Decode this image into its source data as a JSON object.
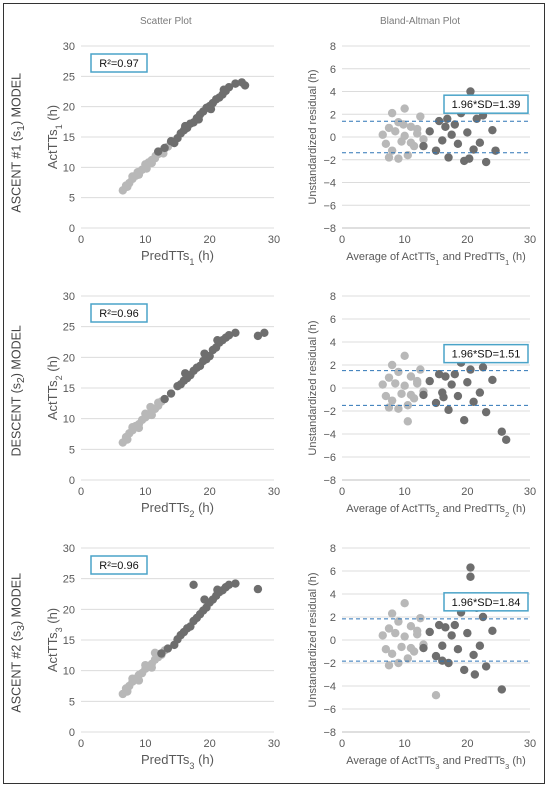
{
  "columns": {
    "scatter_title": "Scatter Plot",
    "ba_title": "Bland-Altman Plot"
  },
  "rows": [
    {
      "label_main": "ASCENT #1 (s",
      "label_sub": "1",
      "label_end": ") MODEL"
    },
    {
      "label_main": "DESCENT (s",
      "label_sub": "2",
      "label_end": ") MODEL"
    },
    {
      "label_main": "ASCENT #2 (s",
      "label_sub": "3",
      "label_end": ") MODEL"
    }
  ],
  "chart_data": [
    {
      "type": "scatter",
      "panel": "scatter-1",
      "xlabel": "PredTTs",
      "xlabel_sub": "1",
      "xlabel_unit": " (h)",
      "ylabel": "ActTTs",
      "ylabel_sub": "1",
      "ylabel_unit": " (h)",
      "xlim": [
        0,
        30
      ],
      "ylim": [
        0,
        30
      ],
      "xticks": [
        "0",
        "10",
        "20",
        "30"
      ],
      "yticks": [
        "0",
        "5",
        "10",
        "15",
        "20",
        "25",
        "30"
      ],
      "annotation": "R²=0.97",
      "grid": true,
      "series": [
        {
          "color": "#b8b8b8",
          "x": [
            6.5,
            7,
            7.5,
            8,
            8.5,
            9,
            9.5,
            10,
            10.5,
            11,
            11.5,
            12,
            12.5,
            13,
            13.5,
            8,
            9,
            10,
            11,
            12,
            7.2,
            8.8,
            10.2,
            11.6,
            12.8
          ],
          "y": [
            6.2,
            7,
            7.4,
            8.1,
            8.6,
            9.2,
            9.6,
            10.1,
            10.8,
            11.2,
            11.5,
            12.2,
            12.6,
            13.1,
            13.4,
            8.5,
            8.8,
            10.5,
            10.7,
            12.5,
            6.8,
            9.2,
            9.8,
            11.9,
            12.3
          ]
        },
        {
          "color": "#6e6e6e",
          "x": [
            12,
            13,
            14,
            15,
            15.5,
            16,
            16.5,
            17,
            17.5,
            18,
            18.5,
            19,
            19.5,
            20,
            20.5,
            21,
            21.5,
            22,
            22.5,
            23,
            24,
            25,
            25.5,
            14.5,
            16.2,
            18.3,
            20.2,
            22.2
          ],
          "y": [
            12.6,
            13.2,
            14.3,
            14.8,
            15.6,
            16.1,
            16.5,
            17.2,
            17.4,
            18.1,
            18.7,
            19.2,
            19.8,
            20.1,
            20.6,
            21.2,
            21.5,
            22,
            22.6,
            23.2,
            23.8,
            24,
            23.5,
            14,
            16.8,
            17.9,
            19.6,
            22.8
          ]
        }
      ]
    },
    {
      "type": "scatter",
      "panel": "ba-1",
      "xlabel": "Average of ActTTs",
      "xlabel_sub": "1",
      "xlabel_mid": " and PredTTs",
      "xlabel_sub2": "1",
      "xlabel_unit": " (h)",
      "ylabel": "Unstandardized residual (h)",
      "xlim": [
        0,
        30
      ],
      "ylim": [
        -8,
        8
      ],
      "xticks": [
        "0",
        "10",
        "20",
        "30"
      ],
      "yticks": [
        "−8",
        "−6",
        "−4",
        "−2",
        "0",
        "2",
        "4",
        "6",
        "8"
      ],
      "annotation": "1.96*SD=1.39",
      "limits": [
        1.39,
        -1.39
      ],
      "grid": true,
      "series": [
        {
          "color": "#b8b8b8",
          "x": [
            6.5,
            7,
            7.5,
            8,
            8.5,
            9,
            9.5,
            10,
            10.5,
            11,
            11.5,
            12,
            12.5,
            13,
            8,
            9,
            10,
            11,
            12,
            7.5,
            9.8
          ],
          "y": [
            0.2,
            -0.6,
            0.8,
            -1.2,
            0.5,
            1.3,
            -0.4,
            0.1,
            -1.6,
            0.9,
            -0.8,
            0.3,
            1.8,
            -0.2,
            2.1,
            -1.9,
            2.5,
            -0.5,
            0.7,
            -1.8,
            1.1
          ]
        },
        {
          "color": "#6e6e6e",
          "x": [
            13,
            14,
            15,
            15.5,
            16,
            16.5,
            17,
            17.5,
            18,
            18.5,
            19,
            19.5,
            20,
            20.5,
            21,
            21.5,
            22,
            22.5,
            23,
            24,
            24.5,
            18.8,
            20.3,
            16.8,
            21.8
          ],
          "y": [
            -0.8,
            0.5,
            -1.2,
            1.4,
            -0.3,
            0.9,
            -1.8,
            0.2,
            1.1,
            -0.6,
            2.1,
            -2.1,
            0.4,
            4.0,
            -1.1,
            1.6,
            -0.5,
            1.9,
            -2.2,
            0.6,
            -1.2,
            3.3,
            -1.9,
            1.6,
            2.6
          ]
        }
      ]
    },
    {
      "type": "scatter",
      "panel": "scatter-2",
      "xlabel": "PredTTs",
      "xlabel_sub": "2",
      "xlabel_unit": " (h)",
      "ylabel": "ActTTs",
      "ylabel_sub": "2",
      "ylabel_unit": " (h)",
      "xlim": [
        0,
        30
      ],
      "ylim": [
        0,
        30
      ],
      "xticks": [
        "0",
        "10",
        "20",
        "30"
      ],
      "yticks": [
        "0",
        "5",
        "10",
        "15",
        "20",
        "25",
        "30"
      ],
      "annotation": "R²=0.96",
      "grid": true,
      "series": [
        {
          "color": "#b8b8b8",
          "x": [
            6.5,
            7,
            7.5,
            8,
            8.5,
            9,
            9.5,
            10,
            10.5,
            11,
            11.5,
            12,
            12.5,
            13,
            8,
            9,
            10,
            11,
            12,
            7.2,
            10.8
          ],
          "y": [
            6.1,
            7,
            7.6,
            8.1,
            8.8,
            9.1,
            9.8,
            10.2,
            10.6,
            11.3,
            11.6,
            12.1,
            12.8,
            13.2,
            8.6,
            8.5,
            10.8,
            10.6,
            12.6,
            6.6,
            11.9
          ]
        },
        {
          "color": "#6e6e6e",
          "x": [
            13,
            14,
            15,
            15.5,
            16,
            16.5,
            17,
            17.5,
            18,
            18.5,
            19,
            19.5,
            20,
            20.5,
            21,
            21.5,
            22,
            22.5,
            23,
            24,
            27.5,
            28.5,
            16.2,
            19.2,
            21.2
          ],
          "y": [
            13.2,
            14.1,
            15.3,
            15.6,
            16.2,
            16.6,
            17.1,
            17.8,
            18.3,
            18.6,
            19.4,
            19.7,
            20.2,
            21.2,
            21.6,
            22.4,
            22.8,
            23.2,
            23.6,
            24,
            23.5,
            24,
            17.4,
            20.6,
            22.8
          ]
        }
      ]
    },
    {
      "type": "scatter",
      "panel": "ba-2",
      "xlabel": "Average of ActTTs",
      "xlabel_sub": "2",
      "xlabel_mid": " and PredTTs",
      "xlabel_sub2": "2",
      "xlabel_unit": " (h)",
      "ylabel": "Unstandardized residual (h)",
      "xlim": [
        0,
        30
      ],
      "ylim": [
        -8,
        8
      ],
      "xticks": [
        "0",
        "10",
        "20",
        "30"
      ],
      "yticks": [
        "−8",
        "−6",
        "−4",
        "−2",
        "0",
        "2",
        "4",
        "6",
        "8"
      ],
      "annotation": "1.96*SD=1.51",
      "limits": [
        1.51,
        -1.51
      ],
      "grid": true,
      "series": [
        {
          "color": "#b8b8b8",
          "x": [
            6.5,
            7,
            7.5,
            8,
            8.5,
            9,
            9.5,
            10,
            10.5,
            11,
            11.5,
            12,
            12.5,
            13,
            8,
            9,
            10,
            11,
            12,
            7.5,
            10.5
          ],
          "y": [
            0.3,
            -0.7,
            0.9,
            -1.1,
            0.4,
            1.4,
            -0.5,
            0.2,
            -1.5,
            1.0,
            -0.9,
            0.4,
            1.6,
            -0.3,
            2.0,
            -1.8,
            2.8,
            -0.6,
            0.6,
            -1.7,
            -2.9
          ]
        },
        {
          "color": "#6e6e6e",
          "x": [
            13,
            14,
            15,
            15.5,
            16,
            16.5,
            17,
            17.5,
            18,
            18.5,
            19,
            19.5,
            20,
            20.5,
            21,
            21.5,
            22,
            22.5,
            23,
            24,
            25.5,
            26.2,
            18.2,
            21.8,
            16.2
          ],
          "y": [
            -0.6,
            0.6,
            -1.3,
            1.2,
            -0.4,
            1.0,
            -1.9,
            0.3,
            1.2,
            -0.7,
            2.2,
            -2.8,
            0.5,
            1.6,
            -1.2,
            2.9,
            -0.4,
            1.8,
            -2.1,
            0.7,
            -3.8,
            -4.5,
            3.2,
            3.0,
            -0.8
          ]
        }
      ]
    },
    {
      "type": "scatter",
      "panel": "scatter-3",
      "xlabel": "PredTTs",
      "xlabel_sub": "3",
      "xlabel_unit": " (h)",
      "ylabel": "ActTTs",
      "ylabel_sub": "3",
      "ylabel_unit": " (h)",
      "xlim": [
        0,
        30
      ],
      "ylim": [
        0,
        30
      ],
      "xticks": [
        "0",
        "10",
        "20",
        "30"
      ],
      "yticks": [
        "0",
        "5",
        "10",
        "15",
        "20",
        "25",
        "30"
      ],
      "annotation": "R²=0.96",
      "grid": true,
      "series": [
        {
          "color": "#b8b8b8",
          "x": [
            6.5,
            7,
            7.5,
            8,
            8.5,
            9,
            9.5,
            10,
            10.5,
            11,
            11.5,
            12,
            12.5,
            13,
            8,
            9,
            10,
            11,
            12,
            7.2,
            11.5
          ],
          "y": [
            6.2,
            7.1,
            7.5,
            8.2,
            8.7,
            9.3,
            9.6,
            10.3,
            10.7,
            11.1,
            11.8,
            12.2,
            12.6,
            13.3,
            8.7,
            8.4,
            10.9,
            10.5,
            12.7,
            6.6,
            12.9
          ]
        },
        {
          "color": "#6e6e6e",
          "x": [
            12.5,
            13.5,
            14.5,
            15,
            15.5,
            16,
            16.5,
            17,
            17.5,
            18,
            18.5,
            19,
            19.5,
            20,
            20.5,
            21,
            21.5,
            22,
            22.5,
            23,
            24,
            27.5,
            17.5,
            19.2,
            21.2
          ],
          "y": [
            12.8,
            13.6,
            14.2,
            15.1,
            15.8,
            16.3,
            16.9,
            17.2,
            18.1,
            18.6,
            19.2,
            19.8,
            20.3,
            21.1,
            21.6,
            22.2,
            22.8,
            23.1,
            23.6,
            24,
            24.2,
            23.3,
            24.0,
            21.6,
            23.2
          ]
        }
      ]
    },
    {
      "type": "scatter",
      "panel": "ba-3",
      "xlabel": "Average of ActTTs",
      "xlabel_sub": "3",
      "xlabel_mid": " and PredTTs",
      "xlabel_sub2": "3",
      "xlabel_unit": " (h)",
      "ylabel": "Unstandardized residual (h)",
      "xlim": [
        0,
        30
      ],
      "ylim": [
        -8,
        8
      ],
      "xticks": [
        "0",
        "10",
        "20",
        "30"
      ],
      "yticks": [
        "−8",
        "−6",
        "−4",
        "−2",
        "0",
        "2",
        "4",
        "6",
        "8"
      ],
      "annotation": "1.96*SD=1.84",
      "limits": [
        1.84,
        -1.84
      ],
      "grid": true,
      "series": [
        {
          "color": "#b8b8b8",
          "x": [
            6.5,
            7,
            7.5,
            8,
            8.5,
            9,
            9.5,
            10,
            10.5,
            11,
            11.5,
            12,
            12.5,
            13,
            8,
            9,
            10,
            11,
            12,
            7.5,
            15
          ],
          "y": [
            0.4,
            -0.8,
            1.0,
            -1.2,
            0.6,
            1.6,
            -0.6,
            0.3,
            -1.6,
            1.2,
            -1.0,
            0.5,
            1.9,
            -0.4,
            2.3,
            -2.0,
            3.2,
            -0.7,
            0.8,
            -2.2,
            -4.8
          ]
        },
        {
          "color": "#6e6e6e",
          "x": [
            13,
            14,
            15,
            15.5,
            16,
            16.5,
            17,
            17.5,
            18,
            18.5,
            19,
            19.5,
            20,
            20.5,
            21,
            21.5,
            22,
            22.5,
            23,
            24,
            25.5,
            20.5,
            21.2,
            18.5,
            16
          ],
          "y": [
            -0.7,
            0.7,
            -1.4,
            1.3,
            -0.5,
            1.1,
            -2.0,
            0.4,
            1.3,
            -0.8,
            2.4,
            -2.6,
            0.6,
            6.3,
            -1.3,
            2.8,
            -0.5,
            2.0,
            -2.3,
            0.8,
            -4.3,
            5.5,
            -3.0,
            3.0,
            -1.8
          ]
        }
      ]
    }
  ]
}
